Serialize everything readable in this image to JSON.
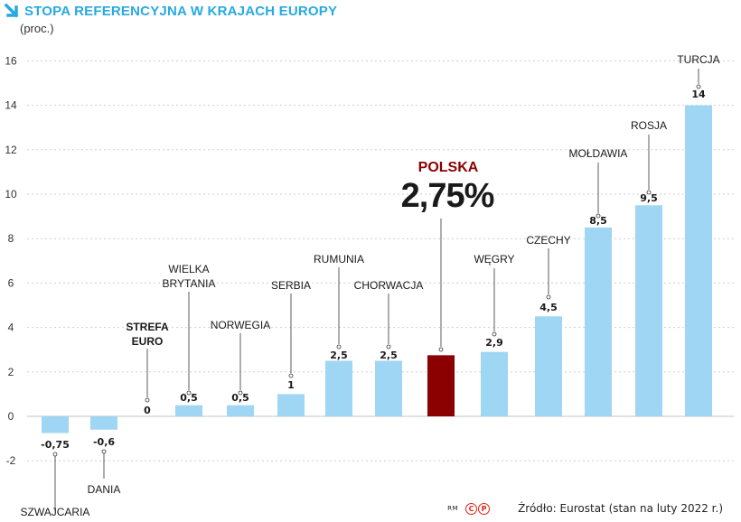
{
  "header": {
    "title": "STOPA REFERENCYJNA W KRAJACH EUROPY",
    "unit": "(proc.)"
  },
  "footer": {
    "rm": "RM",
    "cp_left": "C",
    "cp_right": "P",
    "source": "Źródło: Eurostat (stan na luty 2022 r.)"
  },
  "colors": {
    "title": "#27a9e1",
    "bar": "#9ed6f3",
    "highlight_bar": "#8b0000",
    "highlight_label": "#8b0000",
    "grid": "#cfcfcf",
    "cp_logo": "#e2231a"
  },
  "chart_data": {
    "type": "bar",
    "title": "STOPA REFERENCYJNA W KRAJACH EUROPY",
    "ylabel": "(proc.)",
    "ylim": [
      -3,
      17
    ],
    "yticks": [
      -2,
      0,
      2,
      4,
      6,
      8,
      10,
      12,
      14,
      16
    ],
    "grid": "horizontal dotted",
    "categories": [
      "SZWAJCARIA",
      "DANIA",
      "STREFA EURO",
      "WIELKA BRYTANIA",
      "NORWEGIA",
      "SERBIA",
      "RUMUNIA",
      "CHORWACJA",
      "POLSKA",
      "WĘGRY",
      "CZECHY",
      "MOŁDAWIA",
      "ROSJA",
      "TURCJA"
    ],
    "values": [
      -0.75,
      -0.6,
      0,
      0.5,
      0.5,
      1,
      2.5,
      2.5,
      2.75,
      2.9,
      4.5,
      8.5,
      9.5,
      14
    ],
    "value_labels": [
      "-0,75",
      "-0,6",
      "0",
      "0,5",
      "0,5",
      "1",
      "2,5",
      "2,5",
      "2,75%",
      "2,9",
      "4,5",
      "8,5",
      "9,5",
      "14"
    ],
    "highlight": "POLSKA"
  }
}
